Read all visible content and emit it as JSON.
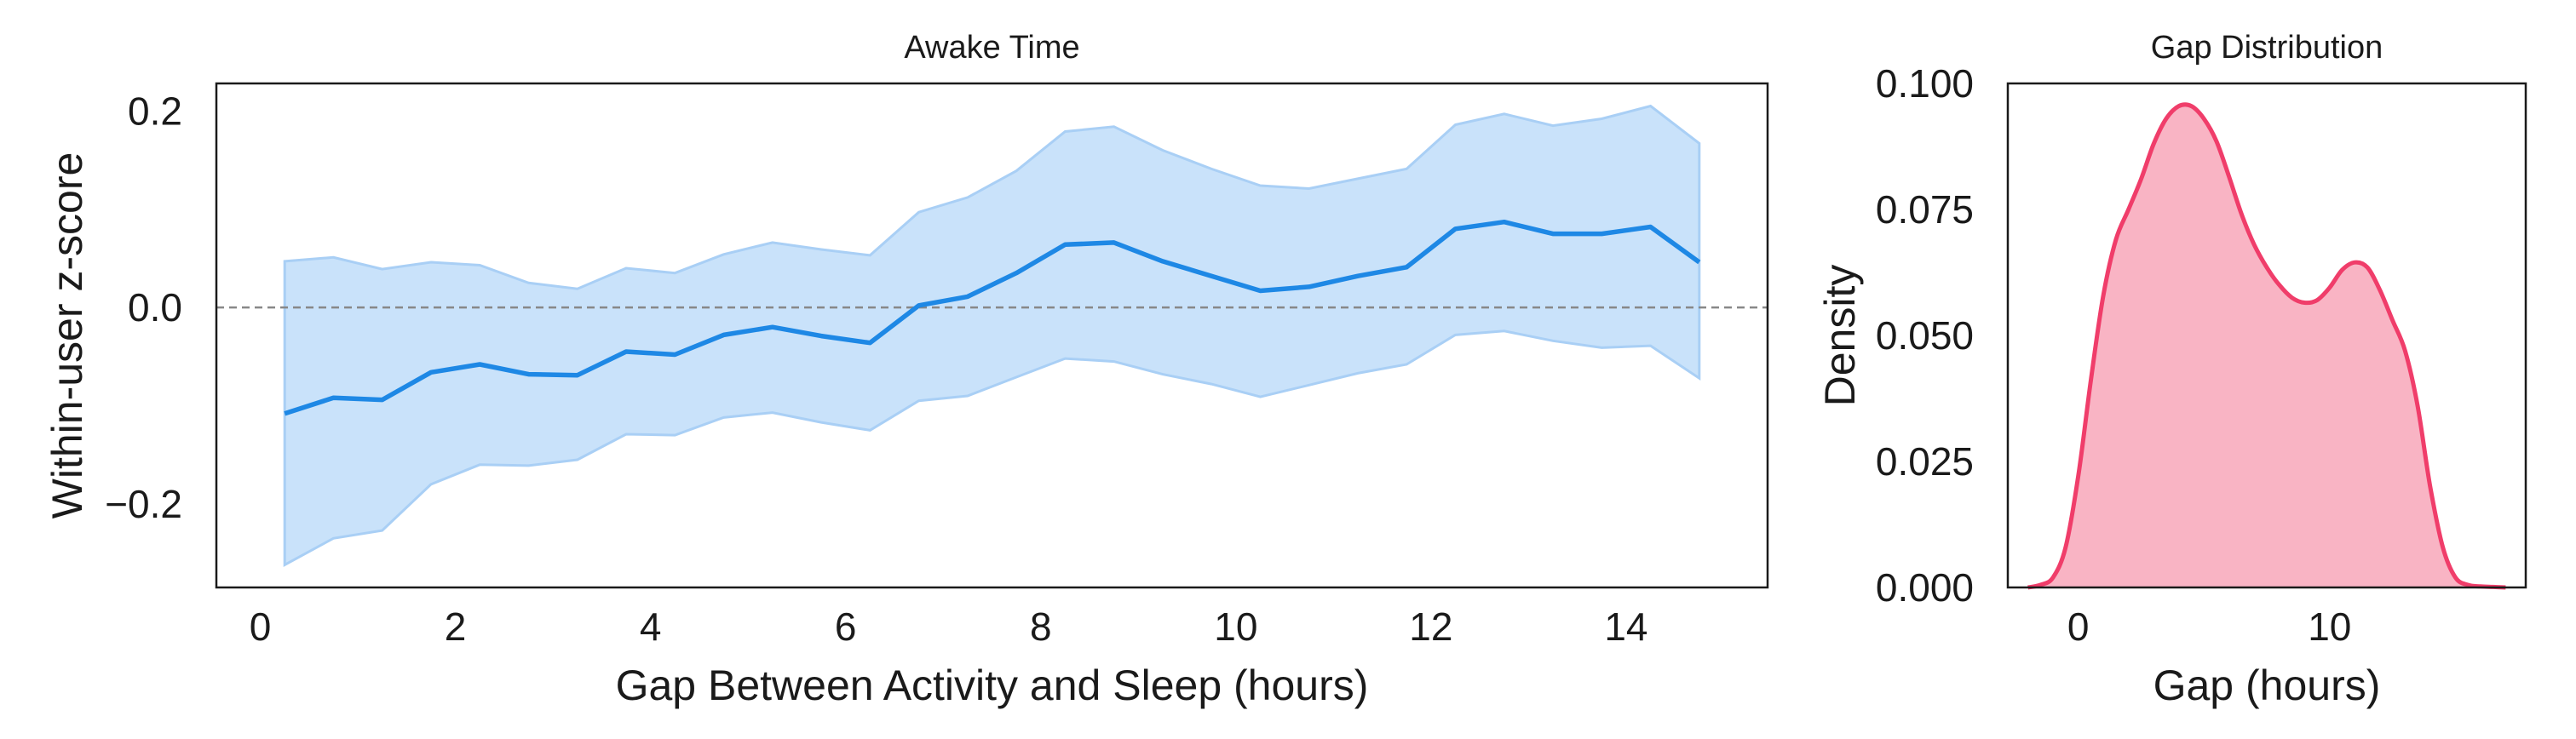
{
  "chart_data": [
    {
      "type": "line",
      "title": "Awake Time",
      "xlabel": "Gap Between Activity and Sleep (hours)",
      "ylabel": "Within-user z-score",
      "xlim": [
        -0.45,
        15.45
      ],
      "ylim": [
        -0.285,
        0.228
      ],
      "xticks": [
        0,
        2,
        4,
        6,
        8,
        10,
        12,
        14
      ],
      "xtick_labels": [
        "0",
        "2",
        "4",
        "6",
        "8",
        "10",
        "12",
        "14"
      ],
      "yticks": [
        -0.2,
        0.0,
        0.2
      ],
      "ytick_labels": [
        "−0.2",
        "0.0",
        "0.2"
      ],
      "reference_line": {
        "y": 0.0,
        "style": "dashed",
        "color": "#888888"
      },
      "grid": false,
      "series": [
        {
          "color": "#1e88e5",
          "band_color": "#c9e2fa",
          "x": [
            0.25,
            0.75,
            1.25,
            1.75,
            2.25,
            2.75,
            3.25,
            3.75,
            4.25,
            4.75,
            5.25,
            5.75,
            6.25,
            6.75,
            7.25,
            7.75,
            8.25,
            8.75,
            9.25,
            9.75,
            10.25,
            10.75,
            11.25,
            11.75,
            12.25,
            12.75,
            13.25,
            13.75,
            14.25,
            14.75
          ],
          "y": [
            -0.108,
            -0.092,
            -0.094,
            -0.066,
            -0.058,
            -0.068,
            -0.069,
            -0.045,
            -0.048,
            -0.028,
            -0.02,
            -0.029,
            -0.036,
            0.002,
            0.011,
            0.035,
            0.064,
            0.066,
            0.047,
            0.032,
            0.017,
            0.021,
            0.032,
            0.041,
            0.08,
            0.087,
            0.075,
            0.075,
            0.082,
            0.046
          ],
          "lower": [
            -0.262,
            -0.235,
            -0.227,
            -0.18,
            -0.16,
            -0.161,
            -0.155,
            -0.129,
            -0.13,
            -0.112,
            -0.107,
            -0.117,
            -0.125,
            -0.095,
            -0.09,
            -0.071,
            -0.052,
            -0.055,
            -0.068,
            -0.078,
            -0.091,
            -0.079,
            -0.067,
            -0.058,
            -0.028,
            -0.024,
            -0.034,
            -0.041,
            -0.039,
            -0.072
          ],
          "upper": [
            0.047,
            0.051,
            0.039,
            0.046,
            0.043,
            0.025,
            0.019,
            0.04,
            0.035,
            0.054,
            0.066,
            0.059,
            0.053,
            0.097,
            0.112,
            0.139,
            0.179,
            0.184,
            0.16,
            0.141,
            0.124,
            0.121,
            0.131,
            0.141,
            0.186,
            0.197,
            0.185,
            0.192,
            0.205,
            0.167
          ]
        }
      ]
    },
    {
      "type": "area",
      "title": "Gap Distribution",
      "xlabel": "Gap (hours)",
      "ylabel": "Density",
      "xlim": [
        -2.8,
        17.8
      ],
      "ylim": [
        0,
        0.1
      ],
      "xticks": [
        0,
        10
      ],
      "xtick_labels": [
        "0",
        "10"
      ],
      "yticks": [
        0.0,
        0.025,
        0.05,
        0.075,
        0.1
      ],
      "ytick_labels": [
        "0.000",
        "0.025",
        "0.050",
        "0.075",
        "0.100"
      ],
      "grid": false,
      "series": [
        {
          "line_color": "#f03d6a",
          "fill_color": "#f9b4c4",
          "x": [
            -2.0,
            -1.5,
            -1.0,
            -0.5,
            0.0,
            0.5,
            1.0,
            1.5,
            2.0,
            2.5,
            3.0,
            3.5,
            4.0,
            4.5,
            5.0,
            5.5,
            6.0,
            6.5,
            7.0,
            7.5,
            8.0,
            8.5,
            9.0,
            9.5,
            10.0,
            10.5,
            11.0,
            11.5,
            12.0,
            12.5,
            13.0,
            13.5,
            14.0,
            14.5,
            15.0,
            15.5,
            16.0,
            16.5,
            17.0
          ],
          "y": [
            0.0,
            0.0005,
            0.002,
            0.008,
            0.022,
            0.041,
            0.058,
            0.069,
            0.075,
            0.081,
            0.088,
            0.093,
            0.0955,
            0.0955,
            0.093,
            0.0885,
            0.0815,
            0.074,
            0.068,
            0.0635,
            0.06,
            0.0575,
            0.0565,
            0.057,
            0.0595,
            0.063,
            0.0645,
            0.0635,
            0.059,
            0.053,
            0.047,
            0.036,
            0.02,
            0.008,
            0.002,
            0.0005,
            0.0002,
            0.0001,
            0.0
          ]
        }
      ]
    }
  ]
}
